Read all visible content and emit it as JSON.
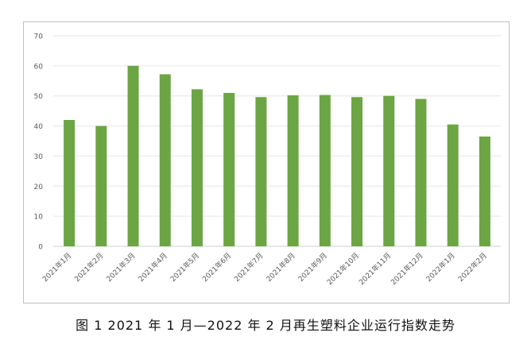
{
  "chart_data": {
    "type": "bar",
    "categories": [
      "2021年1月",
      "2021年2月",
      "2021年3月",
      "2021年4月",
      "2021年5月",
      "2021年6月",
      "2021年7月",
      "2021年8月",
      "2021年9月",
      "2021年10月",
      "2021年11月",
      "2021年12月",
      "2022年1月",
      "2022年2月"
    ],
    "values": [
      42,
      40,
      60,
      57.2,
      52.2,
      51,
      49.6,
      50.2,
      50.3,
      49.6,
      50,
      49,
      40.5,
      36.5
    ],
    "yticks": [
      "0",
      "10",
      "20",
      "30",
      "40",
      "50",
      "60",
      "70"
    ],
    "ylim": [
      0,
      70
    ],
    "grid": true,
    "bar_color": "#6ca543",
    "title": "",
    "xlabel": "",
    "ylabel": ""
  },
  "caption": "图 1  2021 年 1 月—2022 年 2 月再生塑料企业运行指数走势"
}
